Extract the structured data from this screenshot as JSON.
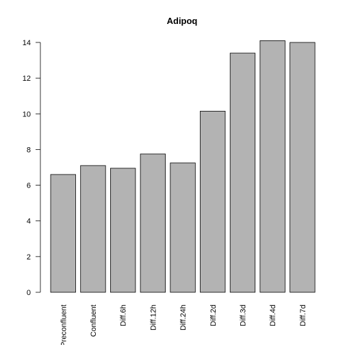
{
  "chart_data": {
    "type": "bar",
    "title": "Adipoq",
    "xlabel": "",
    "ylabel": "",
    "categories": [
      "Preconfluent",
      "Confluent",
      "Diff.6h",
      "Diff.12h",
      "Diff.24h",
      "Diff.2d",
      "Diff.3d",
      "Diff.4d",
      "Diff.7d"
    ],
    "values": [
      6.6,
      7.1,
      6.95,
      7.75,
      7.25,
      10.15,
      13.4,
      14.1,
      14.0
    ],
    "yticks": [
      0,
      2,
      4,
      6,
      8,
      10,
      12,
      14
    ],
    "ylim": [
      0,
      14.1
    ],
    "grid": false,
    "bar_color": "#b3b3b3",
    "bar_border_color": "#000000"
  }
}
